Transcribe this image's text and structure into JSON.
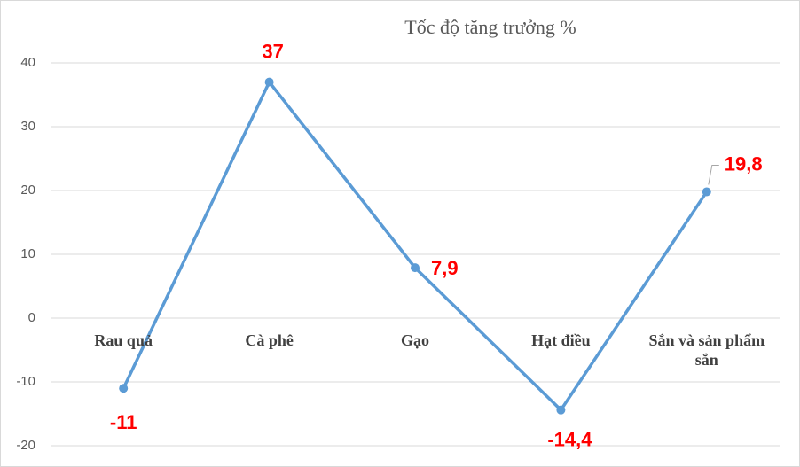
{
  "chart_data": {
    "type": "line",
    "title": "Tốc độ tăng trưởng %",
    "categories": [
      "Rau quả",
      "Cà phê",
      "Gạo",
      "Hạt điều",
      "Sắn và sản phẩm sắn"
    ],
    "series": [
      {
        "name": "Tốc độ tăng trưởng",
        "color": "#5b9bd5",
        "values": [
          -11,
          37,
          7.9,
          -14.4,
          19.8
        ],
        "value_labels": [
          "-11",
          "37",
          "7,9",
          "-14,4",
          "19,8"
        ],
        "label_color": "#ff0000"
      }
    ],
    "ylim": [
      -20,
      40
    ],
    "yticks": [
      -20,
      -10,
      0,
      10,
      20,
      30,
      40
    ],
    "grid": true
  }
}
